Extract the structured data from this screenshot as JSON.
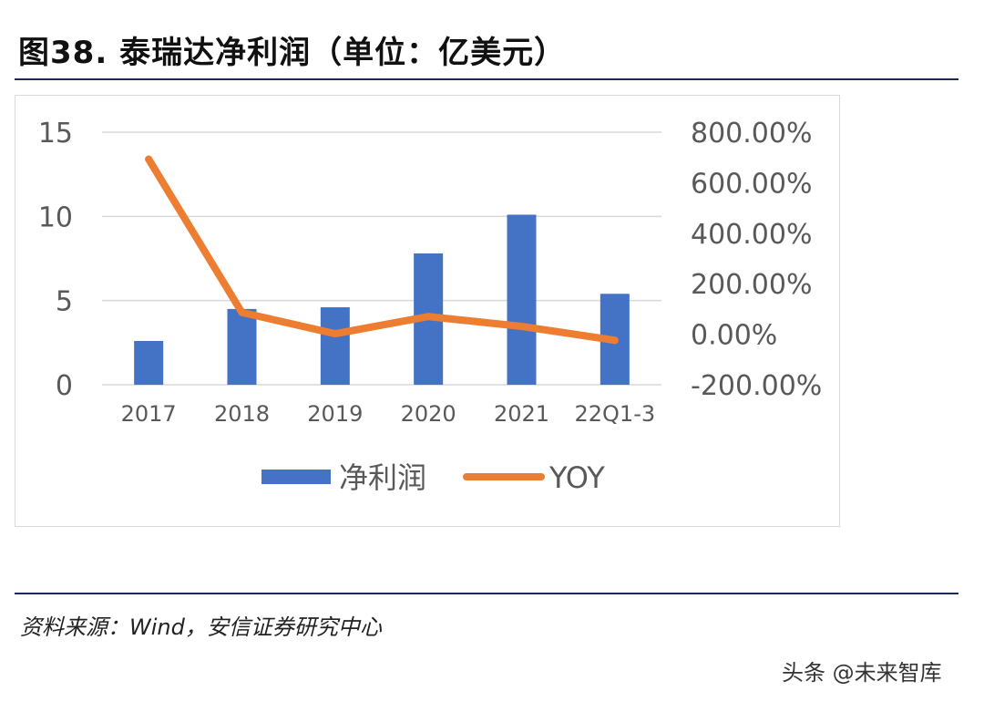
{
  "header": {
    "title": "图38. 泰瑞达净利润（单位：亿美元）"
  },
  "footer": {
    "source": "资料来源：Wind，安信证券研究中心",
    "watermark": "头条 @未来智库"
  },
  "colors": {
    "bar": "#4472c4",
    "line": "#ed7d31",
    "grid": "#d9d9d9",
    "text": "#595959"
  },
  "chart_data": {
    "type": "bar",
    "title": "",
    "categories": [
      "2017",
      "2018",
      "2019",
      "2020",
      "2021",
      "22Q1-3"
    ],
    "series": [
      {
        "name": "净利润",
        "type": "bar",
        "axis": "left",
        "values": [
          2.6,
          4.5,
          4.6,
          7.8,
          10.1,
          5.4
        ]
      },
      {
        "name": "YOY",
        "type": "line",
        "axis": "right",
        "values": [
          693,
          86,
          2,
          70,
          31,
          -24
        ]
      }
    ],
    "y_left": {
      "ylim": [
        0,
        15
      ],
      "ticks": [
        0,
        5,
        10,
        15
      ],
      "tick_labels": [
        "0",
        "5",
        "10",
        "15"
      ]
    },
    "y_right": {
      "ylim": [
        -200,
        800
      ],
      "ticks": [
        -200,
        0,
        200,
        400,
        600,
        800
      ],
      "tick_labels": [
        "-200.00%",
        "0.00%",
        "200.00%",
        "400.00%",
        "600.00%",
        "800.00%"
      ]
    },
    "grid": true,
    "legend": {
      "position": "bottom",
      "entries": [
        "净利润",
        "YOY"
      ]
    }
  }
}
